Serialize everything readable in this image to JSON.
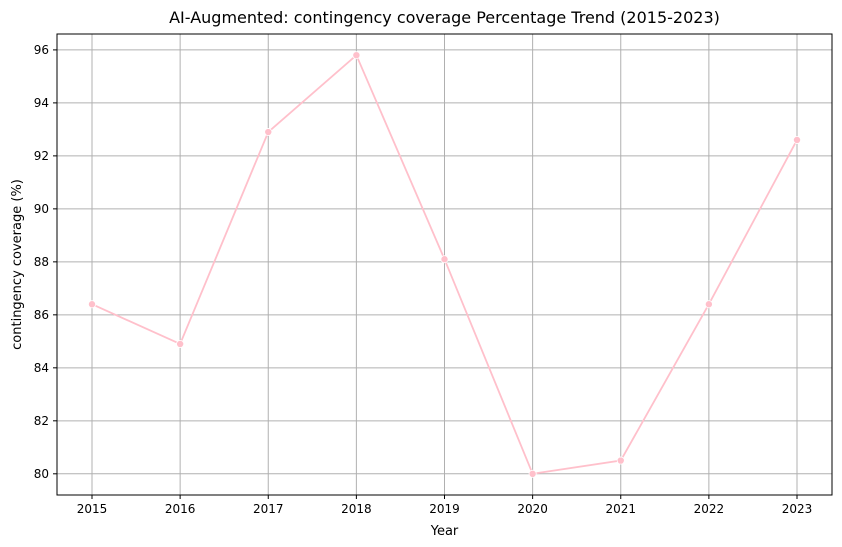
{
  "chart_data": {
    "type": "line",
    "title": "AI-Augmented: contingency coverage Percentage Trend (2015-2023)",
    "xlabel": "Year",
    "ylabel": "contingency coverage (%)",
    "x": [
      "2015",
      "2016",
      "2017",
      "2018",
      "2019",
      "2020",
      "2021",
      "2022",
      "2023"
    ],
    "series": [
      {
        "values": [
          86.4,
          84.9,
          92.9,
          95.8,
          88.1,
          80.0,
          80.5,
          86.4,
          92.6
        ],
        "color": "#ffc0cb",
        "marker": "circle"
      }
    ],
    "yticks": [
      80,
      82,
      84,
      86,
      88,
      90,
      92,
      94,
      96
    ],
    "ylim": [
      79.2,
      96.6
    ],
    "grid": true,
    "legend": "none"
  }
}
